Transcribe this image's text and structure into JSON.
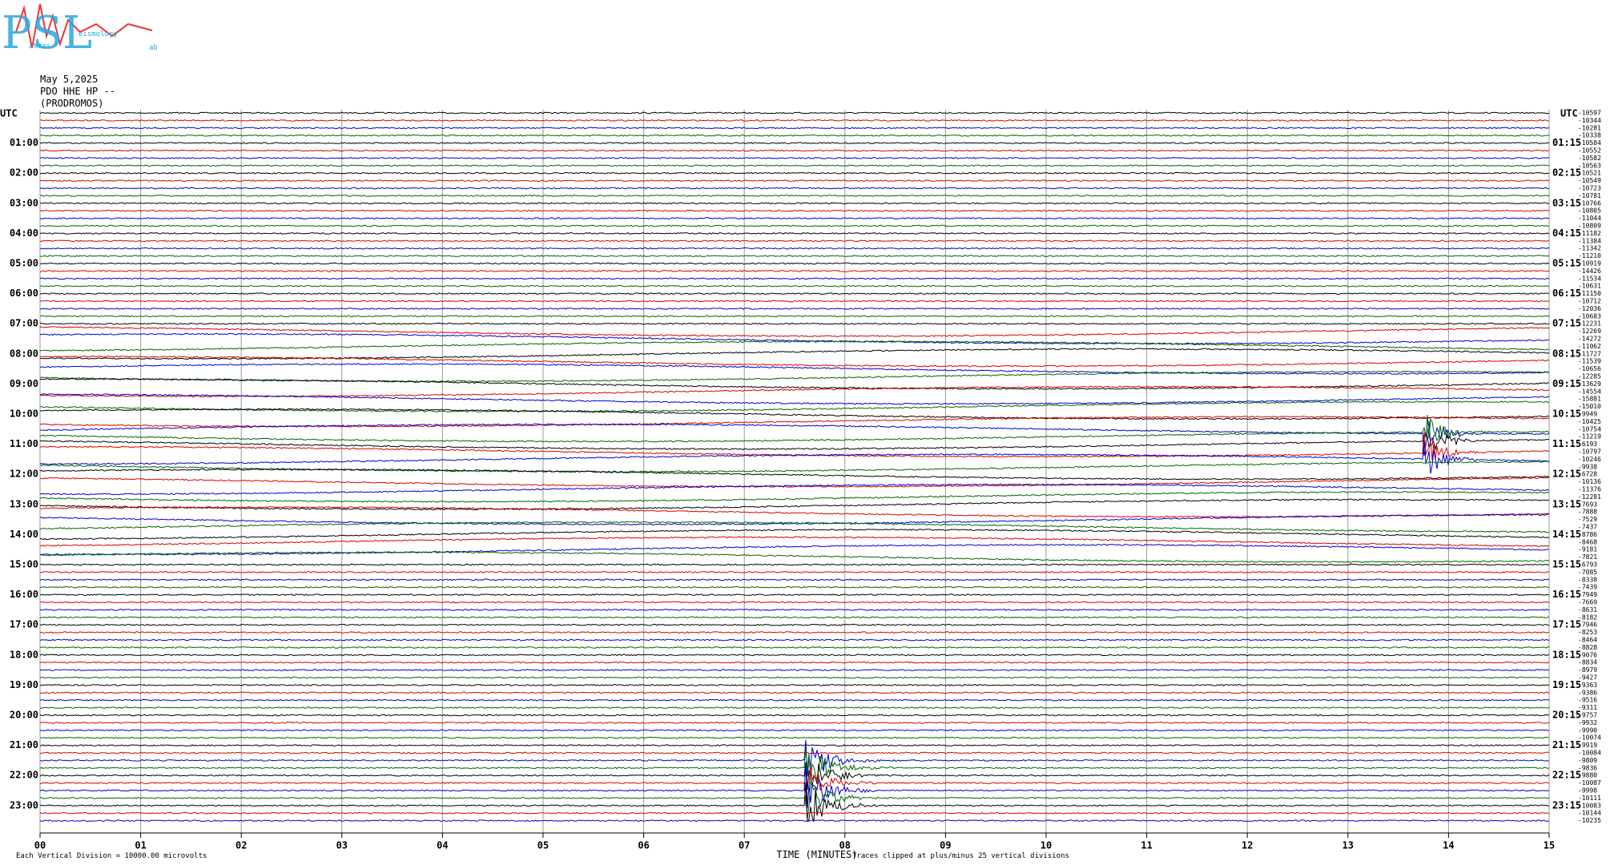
{
  "logo": {
    "letters": "PSL",
    "words": [
      "atras",
      "eismology",
      "ab"
    ]
  },
  "header": {
    "date": "May 5,2025",
    "station": "PDO HHE HP --",
    "location": "(PRODROMOS)"
  },
  "left_utc": "UTC",
  "right_utc": "UTC",
  "left_labels": [
    "01:00",
    "02:00",
    "03:00",
    "04:00",
    "05:00",
    "06:00",
    "07:00",
    "08:00",
    "09:00",
    "10:00",
    "11:00",
    "12:00",
    "13:00",
    "14:00",
    "15:00",
    "16:00",
    "17:00",
    "18:00",
    "19:00",
    "20:00",
    "21:00",
    "22:00",
    "23:00"
  ],
  "right_labels": [
    "01:15",
    "02:15",
    "03:15",
    "04:15",
    "05:15",
    "06:15",
    "07:15",
    "08:15",
    "09:15",
    "10:15",
    "11:15",
    "12:15",
    "13:15",
    "14:15",
    "15:15",
    "16:15",
    "17:15",
    "18:15",
    "19:15",
    "20:15",
    "21:15",
    "22:15",
    "23:15"
  ],
  "offsets": [
    -10597,
    -10344,
    -10281,
    -10338,
    -10584,
    -10552,
    -10582,
    -10563,
    -10521,
    -10549,
    -10723,
    -10781,
    -10766,
    -10805,
    -11044,
    -10809,
    -11182,
    -11384,
    -11342,
    -11210,
    -10919,
    -14426,
    -11534,
    -10631,
    -11150,
    -10712,
    -12036,
    -10683,
    -12231,
    -12269,
    -14272,
    -11062,
    -11727,
    -11539,
    -10656,
    -12285,
    -13629,
    -14554,
    -15881,
    -15010,
    -9949,
    -10425,
    -10754,
    -11219,
    -6193,
    -10797,
    -10246,
    -9938,
    -6728,
    -10136,
    -11376,
    -12281,
    -7693,
    -7888,
    -7529,
    -7437,
    -8786,
    -8468,
    -9181,
    -7821,
    -6793,
    -7085,
    -8338,
    -7439,
    -7949,
    -7669,
    -8631,
    -8182,
    -7946,
    -8253,
    -8464,
    -8828,
    -9076,
    -8834,
    -8979,
    -9427,
    -9363,
    -9386,
    -9516,
    -9311,
    -9757,
    -9932,
    -9990,
    -10074,
    -9919,
    -10084,
    -9809,
    -9836,
    -9880,
    -10087,
    -9998,
    -10111,
    -10083,
    -10144,
    -10235
  ],
  "x_labels": [
    "00",
    "01",
    "02",
    "03",
    "04",
    "05",
    "06",
    "07",
    "08",
    "09",
    "10",
    "11",
    "12",
    "13",
    "14",
    "15"
  ],
  "footer": {
    "division": "Each Vertical Division = 10000.00 microvolts",
    "axis_title": "TIME (MINUTES)",
    "clip_note": "Traces clipped at plus/minus 25 vertical divisions"
  }
}
